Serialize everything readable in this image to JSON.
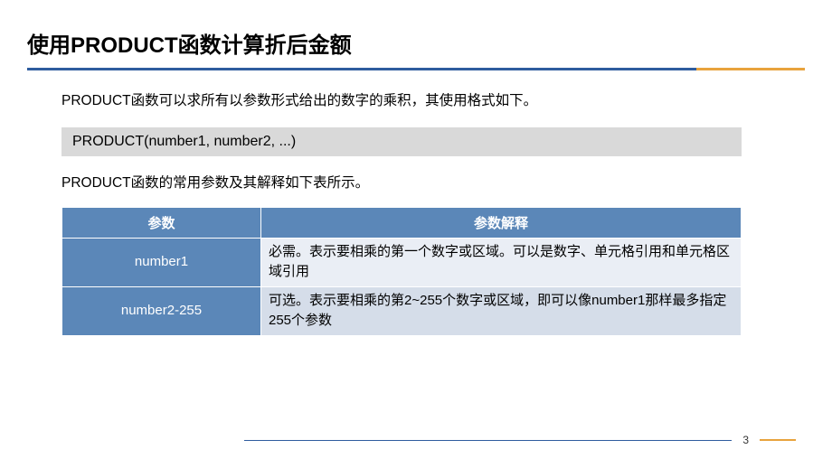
{
  "title": "使用PRODUCT函数计算折后金额",
  "intro": "PRODUCT函数可以求所有以参数形式给出的数字的乘积，其使用格式如下。",
  "codeSignature": "PRODUCT(number1, number2, ...)",
  "subText": "PRODUCT函数的常用参数及其解释如下表所示。",
  "table": {
    "headers": {
      "param": "参数",
      "desc": "参数解释"
    },
    "rows": [
      {
        "name": "number1",
        "desc": "必需。表示要相乘的第一个数字或区域。可以是数字、单元格引用和单元格区域引用"
      },
      {
        "name": "number2-255",
        "desc": "可选。表示要相乘的第2~255个数字或区域，即可以像number1那样最多指定255个参数"
      }
    ]
  },
  "pageNumber": "3",
  "colors": {
    "titleUnderlineBlue": "#2e5c9e",
    "titleUnderlineOrange": "#e8a33d",
    "codeBoxBg": "#d9d9d9",
    "tableHeaderBg": "#5b87b8",
    "tableDescBg1": "#eaeef5",
    "tableDescBg2": "#d5dde9"
  }
}
